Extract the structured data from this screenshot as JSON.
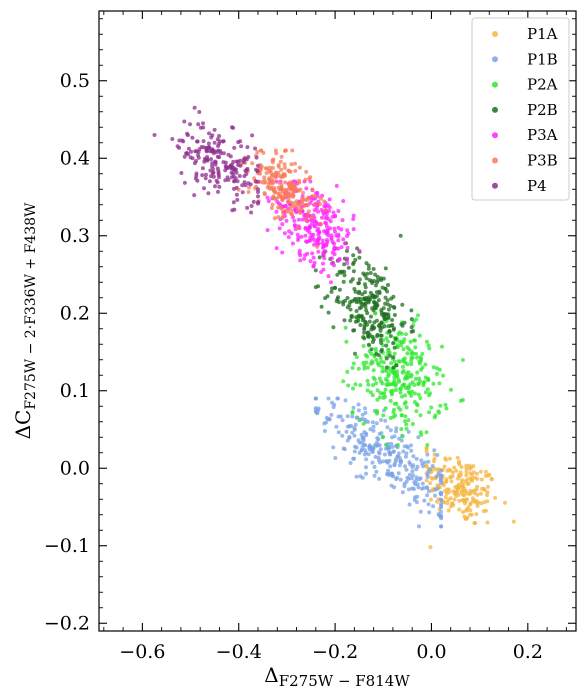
{
  "chart_data": {
    "type": "scatter",
    "xlabel": "Δ",
    "xlabel_sub": "F275W − F814W",
    "ylabel": "ΔC",
    "ylabel_sub": "F275W − 2·F336W + F438W",
    "xlim": [
      -0.69,
      0.3
    ],
    "ylim": [
      -0.21,
      0.59
    ],
    "xticks": [
      -0.6,
      -0.4,
      -0.2,
      0.0,
      0.2
    ],
    "xtick_labels": [
      "−0.6",
      "−0.4",
      "−0.2",
      "0.0",
      "0.2"
    ],
    "yticks": [
      -0.2,
      -0.1,
      0.0,
      0.1,
      0.2,
      0.3,
      0.4,
      0.5
    ],
    "ytick_labels": [
      "−0.2",
      "−0.1",
      "0.0",
      "0.1",
      "0.2",
      "0.3",
      "0.4",
      "0.5"
    ],
    "legend_position": "top-right",
    "grid": false,
    "series": [
      {
        "name": "P1A",
        "color": "#f5b642",
        "cx": 0.06,
        "cy": -0.025,
        "sx": 0.04,
        "sy": 0.022,
        "slope": -0.25,
        "n": 200,
        "x_range": [
          -0.01,
          0.21
        ],
        "y_range": [
          -0.115,
          0.035
        ]
      },
      {
        "name": "P1B",
        "color": "#7ba3e6",
        "cx": -0.09,
        "cy": 0.015,
        "sx": 0.07,
        "sy": 0.022,
        "slope": -0.45,
        "n": 300,
        "x_range": [
          -0.24,
          0.02
        ],
        "y_range": [
          -0.075,
          0.09
        ]
      },
      {
        "name": "P2A",
        "color": "#2ee82e",
        "cx": -0.07,
        "cy": 0.12,
        "sx": 0.045,
        "sy": 0.035,
        "slope": -0.2,
        "n": 300,
        "x_range": [
          -0.19,
          0.09
        ],
        "y_range": [
          0.03,
          0.2
        ]
      },
      {
        "name": "P2B",
        "color": "#1f6e1f",
        "cx": -0.13,
        "cy": 0.21,
        "sx": 0.04,
        "sy": 0.032,
        "slope": -0.3,
        "n": 260,
        "x_range": [
          -0.24,
          0.0
        ],
        "y_range": [
          0.13,
          0.3
        ]
      },
      {
        "name": "P3A",
        "color": "#ff22ff",
        "cx": -0.24,
        "cy": 0.315,
        "sx": 0.04,
        "sy": 0.025,
        "slope": -0.35,
        "n": 260,
        "x_range": [
          -0.34,
          -0.15
        ],
        "y_range": [
          0.24,
          0.37
        ]
      },
      {
        "name": "P3B",
        "color": "#fa7a5a",
        "cx": -0.31,
        "cy": 0.365,
        "sx": 0.035,
        "sy": 0.02,
        "slope": -0.3,
        "n": 220,
        "x_range": [
          -0.4,
          -0.22
        ],
        "y_range": [
          0.28,
          0.41
        ]
      },
      {
        "name": "P4",
        "color": "#8f2e8f",
        "cx": -0.44,
        "cy": 0.395,
        "sx": 0.045,
        "sy": 0.022,
        "slope": -0.3,
        "n": 200,
        "x_range": [
          -0.58,
          -0.36
        ],
        "y_range": [
          0.33,
          0.49
        ]
      }
    ]
  }
}
